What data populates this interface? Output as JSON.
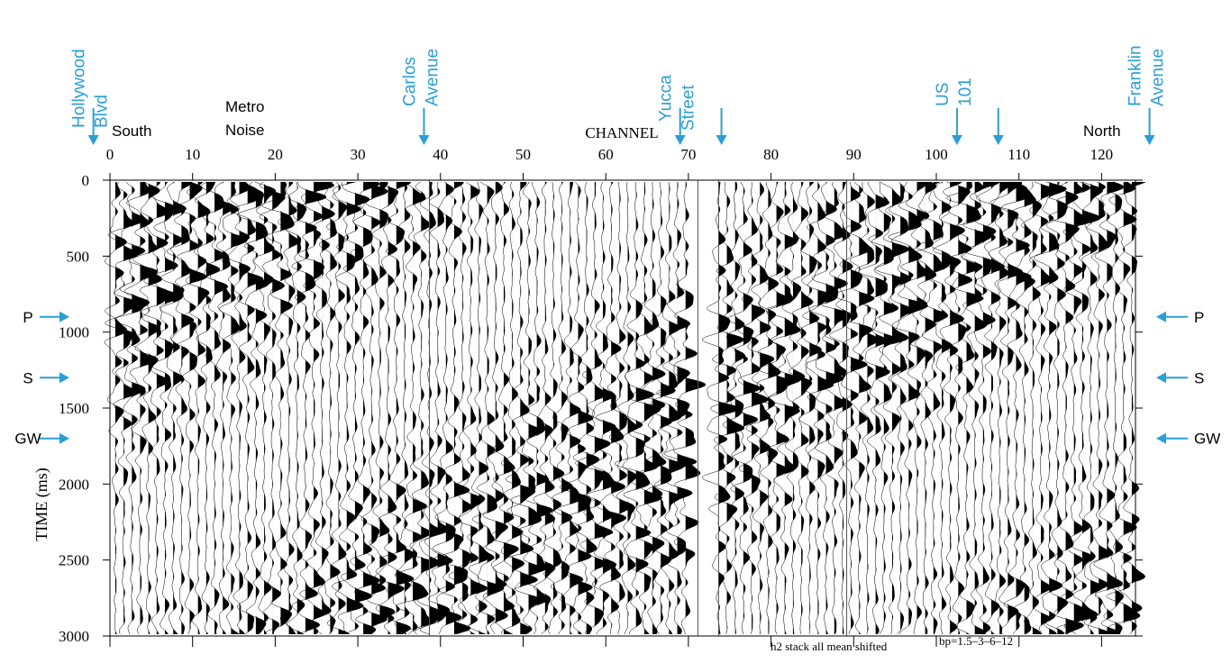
{
  "chart_data": {
    "type": "wiggle",
    "x_label": "CHANNEL",
    "y_label": "TIME (ms)",
    "xlim": [
      0,
      124
    ],
    "ylim": [
      0,
      3000
    ],
    "xticks": [
      0,
      10,
      20,
      30,
      40,
      50,
      60,
      70,
      80,
      90,
      100,
      110,
      120
    ],
    "yticks": [
      0,
      500,
      1000,
      1500,
      2000,
      2500,
      3000
    ],
    "annotation_color": "#2a9fd6",
    "streets": [
      {
        "lines": [
          "Hollywood",
          "Blvd"
        ],
        "channel": -2
      },
      {
        "lines": [
          "Carlos",
          "Avenue"
        ],
        "channel": 38
      },
      {
        "lines": [
          "Yucca",
          "Street"
        ],
        "channel": 69
      },
      {
        "lines": [
          "US",
          "101"
        ],
        "channel": 102.5
      },
      {
        "lines": [
          "Franklin",
          "Avenue"
        ],
        "channel": 125.8
      }
    ],
    "extra_arrows": [
      74,
      107.5
    ],
    "region_labels": [
      [
        "South"
      ],
      [
        "Metro",
        "Noise"
      ],
      [
        "North"
      ]
    ],
    "phases": [
      {
        "label": "P",
        "time": 900
      },
      {
        "label": "S",
        "time": 1300
      },
      {
        "label": "GW",
        "time": 1700
      }
    ],
    "footnote": "h2 stack all mean shifted",
    "filter": "bp=1.5–3–6–12"
  }
}
